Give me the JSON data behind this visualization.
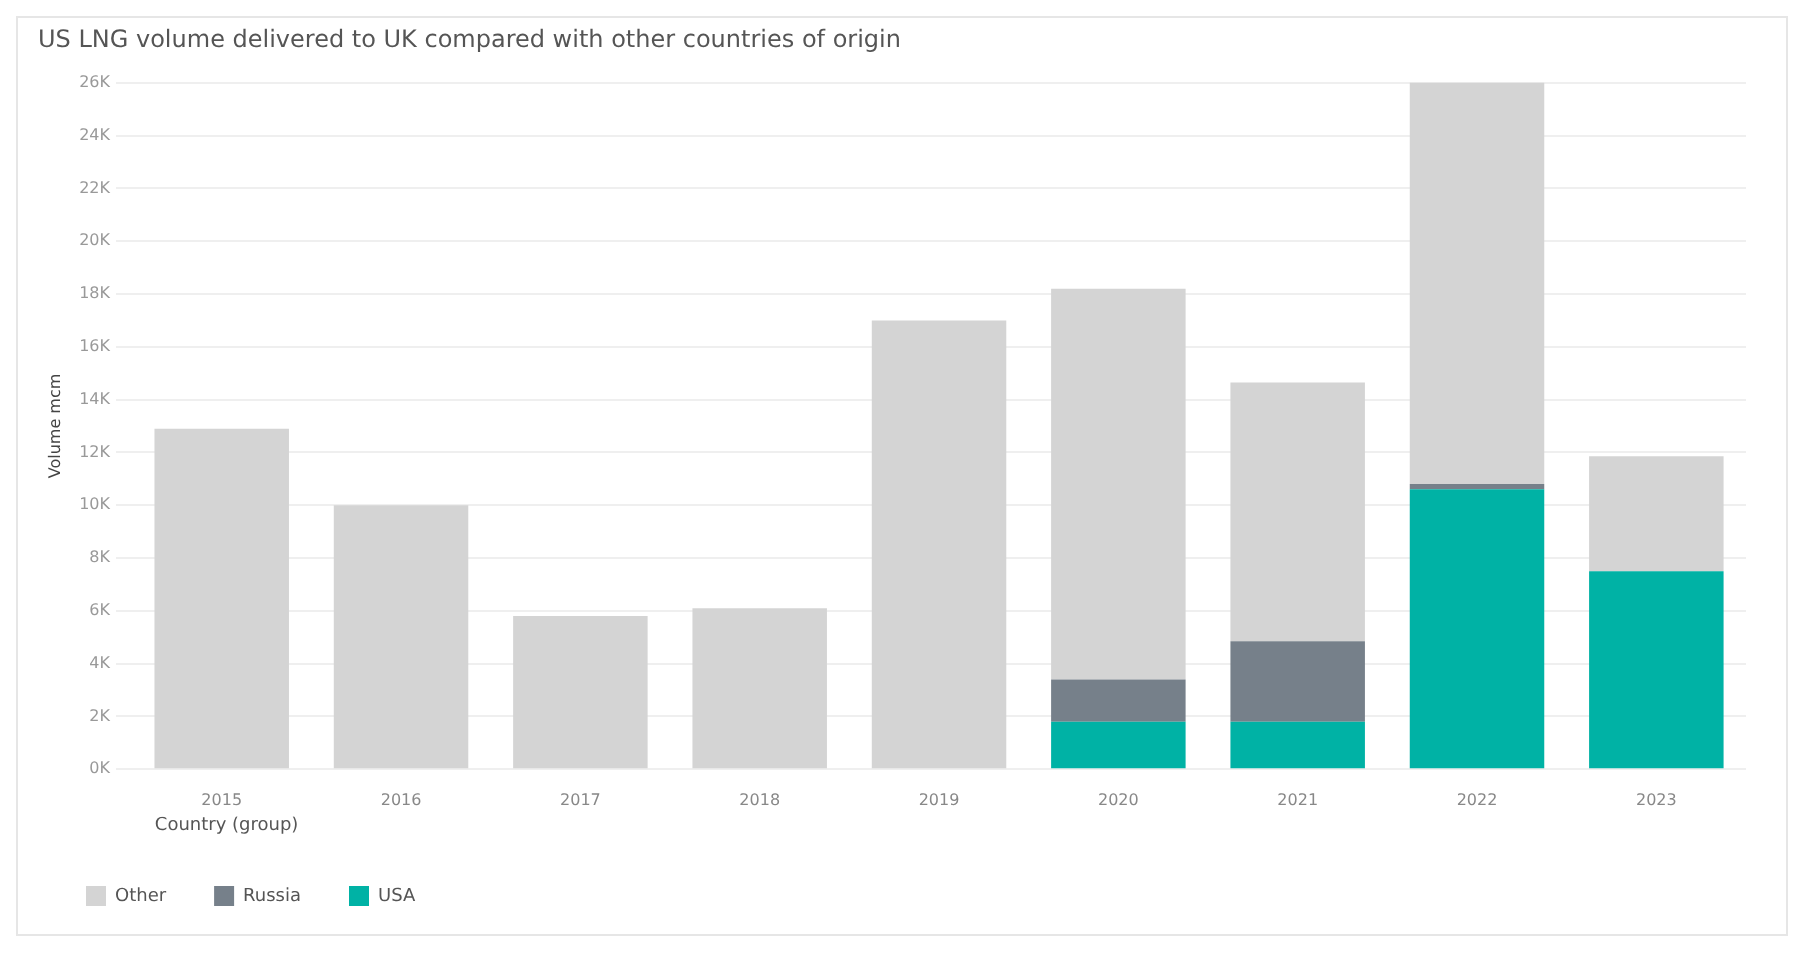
{
  "chart_data": {
    "type": "bar",
    "title": "US LNG volume delivered to UK compared with other countries of origin",
    "ylabel": "Volume mcm",
    "legend_title": "Country (group)",
    "categories": [
      "2015",
      "2016",
      "2017",
      "2018",
      "2019",
      "2020",
      "2021",
      "2022",
      "2023"
    ],
    "stacked": true,
    "series": [
      {
        "name": "USA",
        "color": "#00b2a5",
        "values": [
          null,
          null,
          null,
          null,
          null,
          1800,
          1800,
          10600,
          7500
        ]
      },
      {
        "name": "Russia",
        "color": "#76808a",
        "values": [
          null,
          null,
          null,
          null,
          null,
          1600,
          3050,
          200,
          null
        ]
      },
      {
        "name": "Other",
        "color": "#d4d4d4",
        "values": [
          12900,
          10000,
          5800,
          6100,
          17000,
          14800,
          9800,
          15200,
          4350
        ]
      }
    ],
    "ylim": [
      0,
      26000
    ],
    "yticks": [
      {
        "value": 0,
        "label": "0K"
      },
      {
        "value": 2000,
        "label": "2K"
      },
      {
        "value": 4000,
        "label": "4K"
      },
      {
        "value": 6000,
        "label": "6K"
      },
      {
        "value": 8000,
        "label": "8K"
      },
      {
        "value": 10000,
        "label": "10K"
      },
      {
        "value": 12000,
        "label": "12K"
      },
      {
        "value": 14000,
        "label": "14K"
      },
      {
        "value": 16000,
        "label": "16K"
      },
      {
        "value": 18000,
        "label": "18K"
      },
      {
        "value": 20000,
        "label": "20K"
      },
      {
        "value": 22000,
        "label": "22K"
      },
      {
        "value": 24000,
        "label": "24K"
      },
      {
        "value": 26000,
        "label": "26K"
      }
    ],
    "grid": "y",
    "legend": "bottom left"
  }
}
